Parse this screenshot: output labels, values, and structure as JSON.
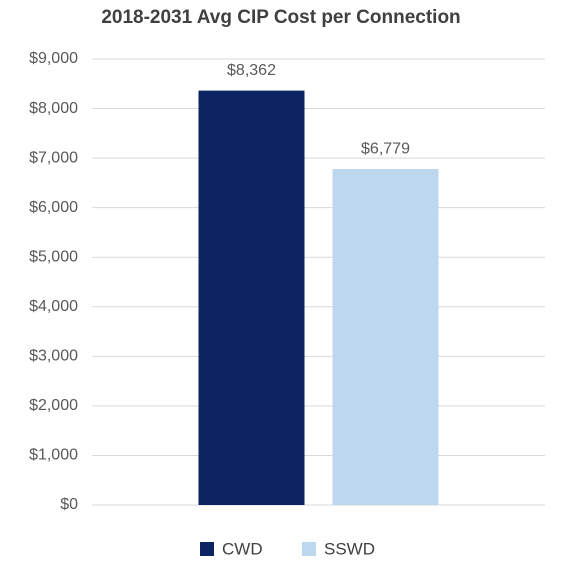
{
  "chart_data": {
    "type": "bar",
    "title": "2018-2031 Avg CIP Cost per Connection",
    "categories": [
      null
    ],
    "series": [
      {
        "name": "CWD",
        "color": "#0c2461",
        "values": [
          8362
        ],
        "value_labels": [
          "$8,362"
        ]
      },
      {
        "name": "SSWD",
        "color": "#bdd7ee",
        "values": [
          6779
        ],
        "value_labels": [
          "$6,779"
        ]
      }
    ],
    "ylim": [
      0,
      9000
    ],
    "yticks": [
      {
        "value": 0,
        "label": "$0"
      },
      {
        "value": 1000,
        "label": "$1,000"
      },
      {
        "value": 2000,
        "label": "$2,000"
      },
      {
        "value": 3000,
        "label": "$3,000"
      },
      {
        "value": 4000,
        "label": "$4,000"
      },
      {
        "value": 5000,
        "label": "$5,000"
      },
      {
        "value": 6000,
        "label": "$6,000"
      },
      {
        "value": 7000,
        "label": "$7,000"
      },
      {
        "value": 8000,
        "label": "$8,000"
      },
      {
        "value": 9000,
        "label": "$9,000"
      }
    ],
    "grid": true,
    "legend": "bottom"
  }
}
